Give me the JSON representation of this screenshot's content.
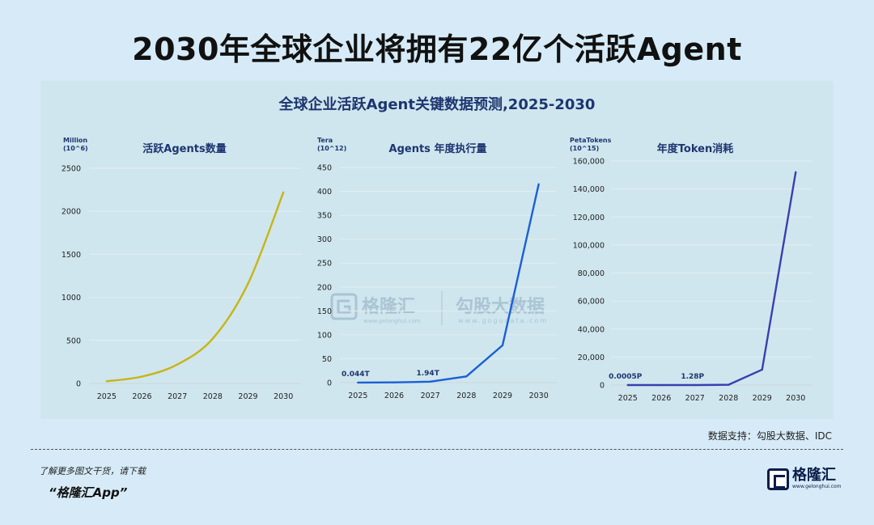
{
  "title": "2030年全球企业将拥有22亿个活跃Agent",
  "panel_title": "全球企业活跃Agent关键数据预测,2025-2030",
  "source_note": "数据支持：勾股大数据、IDC",
  "footer": {
    "line1": "了解更多图文干货，请下载",
    "line2": "“格隆汇App”"
  },
  "logo": {
    "name": "格隆汇",
    "url": "www.gelonghui.com"
  },
  "watermark": {
    "brand1": "格隆汇",
    "url1": "www.gelonghui.com",
    "brand2": "勾股大数据",
    "url2": "www.gogudata.com"
  },
  "chart_data": [
    {
      "type": "line",
      "title": "活跃Agents数量",
      "unit_label": [
        "Million",
        "(10^6)"
      ],
      "color": "#c8b414",
      "smooth": true,
      "categories": [
        "2025",
        "2026",
        "2027",
        "2028",
        "2029",
        "2030"
      ],
      "values": [
        25,
        80,
        220,
        520,
        1160,
        2220
      ],
      "yticks": [
        "0",
        "500",
        "1000",
        "1500",
        "2000",
        "2500"
      ],
      "ylim": [
        0,
        2500
      ],
      "grid": "horizontal",
      "annotations": []
    },
    {
      "type": "line",
      "title": "Agents 年度执行量",
      "unit_label": [
        "Tera",
        "(10^12)"
      ],
      "color": "#1a5fd6",
      "smooth": false,
      "categories": [
        "2025",
        "2026",
        "2027",
        "2028",
        "2029",
        "2030"
      ],
      "values": [
        0.044,
        0.5,
        1.94,
        13,
        78,
        415
      ],
      "yticks": [
        "0",
        "50",
        "100",
        "150",
        "200",
        "250",
        "300",
        "350",
        "400",
        "450"
      ],
      "ylim": [
        0,
        450
      ],
      "grid": "horizontal",
      "annotations": [
        {
          "text": "0.044T",
          "index": 0
        },
        {
          "text": "1.94T",
          "index": 2
        }
      ]
    },
    {
      "type": "line",
      "title": "年度Token消耗",
      "unit_label": [
        "PetaTokens",
        "(10^15)"
      ],
      "color": "#3a3fb0",
      "smooth": false,
      "categories": [
        "2025",
        "2026",
        "2027",
        "2028",
        "2029",
        "2030"
      ],
      "values": [
        0.0005,
        0.3,
        1.28,
        200,
        11000,
        152000
      ],
      "yticks": [
        "0",
        "20,000",
        "40,000",
        "60,000",
        "80,000",
        "100,000",
        "120,000",
        "140,000",
        "160,000"
      ],
      "ylim": [
        0,
        160000
      ],
      "grid": "horizontal",
      "annotations": [
        {
          "text": "0.0005P",
          "index": 0
        },
        {
          "text": "1.28P",
          "index": 2
        }
      ]
    }
  ]
}
